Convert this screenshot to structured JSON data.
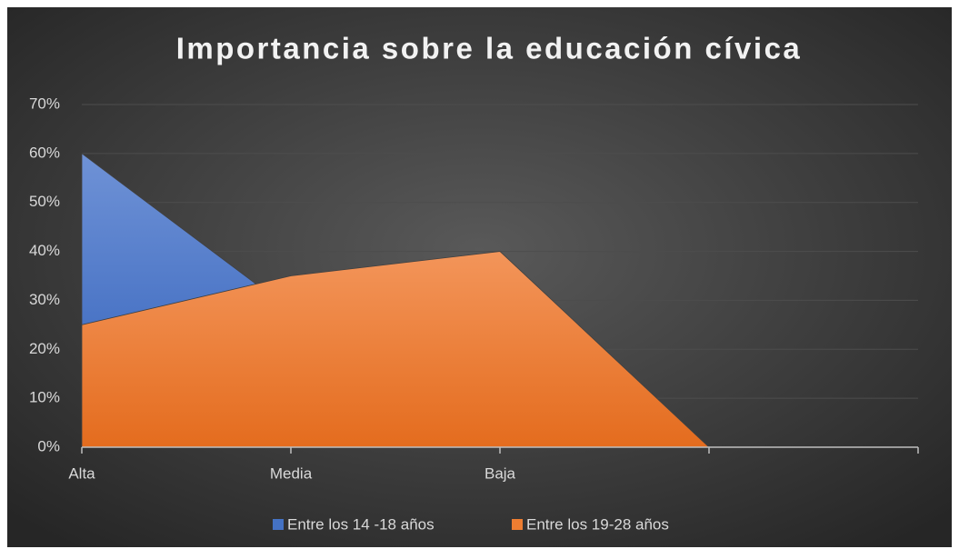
{
  "chart_data": {
    "type": "area",
    "title": "Importancia sobre la educación cívica",
    "categories": [
      "Alta",
      "Media",
      "Baja",
      null,
      null
    ],
    "series": [
      {
        "name": "Entre los 14 -18 años",
        "color": "#4472c4",
        "values": [
          60,
          28,
          10,
          0,
          0
        ]
      },
      {
        "name": "Entre los 19-28 años",
        "color": "#ed7d31",
        "values": [
          25,
          35,
          40,
          0,
          0
        ]
      }
    ],
    "ylim": [
      0,
      70
    ],
    "yticks": [
      {
        "value": 0,
        "label": "0%"
      },
      {
        "value": 10,
        "label": "10%"
      },
      {
        "value": 20,
        "label": "20%"
      },
      {
        "value": 30,
        "label": "30%"
      },
      {
        "value": 40,
        "label": "40%"
      },
      {
        "value": 50,
        "label": "50%"
      },
      {
        "value": 60,
        "label": "60%"
      },
      {
        "value": 70,
        "label": "70%"
      }
    ],
    "grid": true,
    "legend": "bottom"
  }
}
